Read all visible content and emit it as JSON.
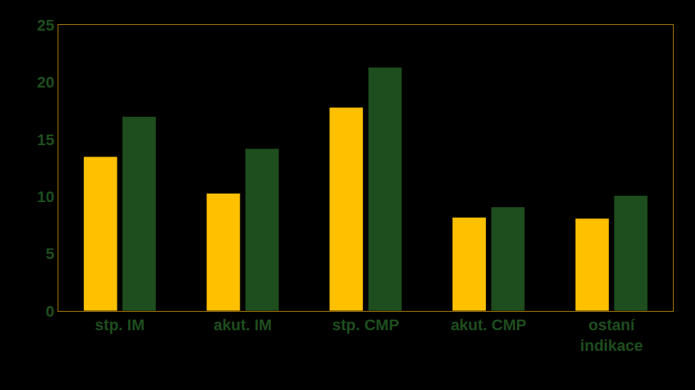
{
  "chart_data": {
    "type": "bar",
    "categories": [
      "stp. IM",
      "akut. IM",
      "stp. CMP",
      "akut. CMP",
      "ostaní indikace"
    ],
    "series": [
      {
        "color": "#FFC000",
        "values": [
          13.5,
          10.3,
          17.8,
          8.2,
          8.1
        ]
      },
      {
        "color": "#1E4D1E",
        "values": [
          17.0,
          14.2,
          21.3,
          9.1,
          10.1
        ]
      }
    ],
    "ylim": [
      0,
      25
    ],
    "yticks": [
      0,
      5,
      10,
      15,
      20,
      25
    ],
    "grid": false
  }
}
